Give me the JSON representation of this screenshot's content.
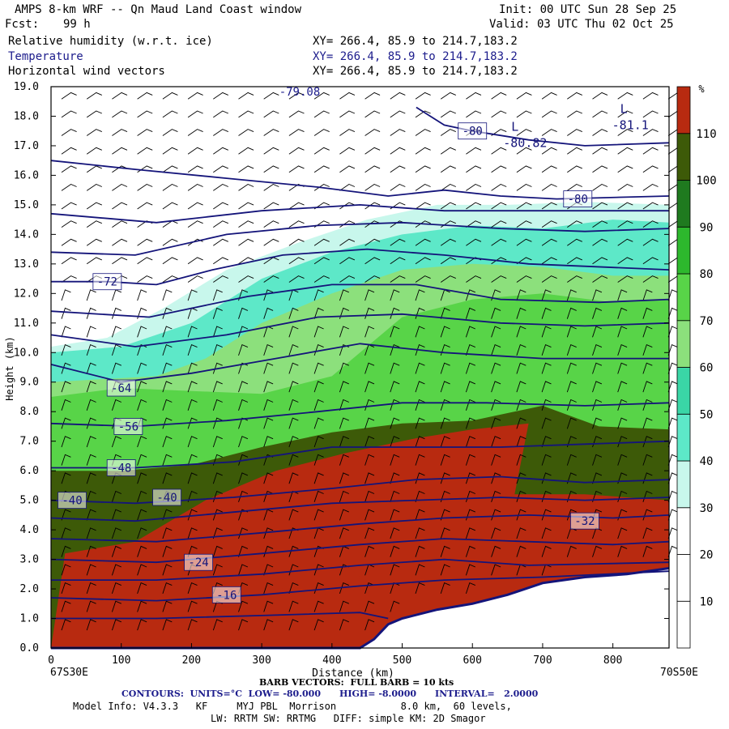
{
  "header": {
    "title": "AMPS 8-km WRF -- Qn Maud Land Coast window",
    "init": "Init: 00 UTC Sun 28 Sep 25",
    "fcst_label": "Fcst:",
    "fcst_value": "99 h",
    "valid": "Valid: 03 UTC Thu 02 Oct 25",
    "fields": [
      {
        "name": "Relative humidity (w.r.t. ice)",
        "xy": "XY= 266.4, 85.9 to 214.7,183.2"
      },
      {
        "name": "Temperature",
        "xy": "XY= 266.4, 85.9 to 214.7,183.2"
      },
      {
        "name": "Horizontal wind vectors",
        "xy": "XY= 266.4, 85.9 to 214.7,183.2"
      }
    ]
  },
  "chart_data": {
    "type": "heatmap",
    "xlabel": "Distance (km)",
    "ylabel": "Height (km)",
    "xlim": [
      0,
      880
    ],
    "ylim": [
      0,
      19
    ],
    "x_ticks": [
      0,
      100,
      200,
      300,
      400,
      500,
      600,
      700,
      800
    ],
    "y_ticks": [
      "0.0",
      "1.0",
      "2.0",
      "3.0",
      "4.0",
      "5.0",
      "6.0",
      "7.0",
      "8.0",
      "9.0",
      "10.0",
      "11.0",
      "12.0",
      "13.0",
      "14.0",
      "15.0",
      "16.0",
      "17.0",
      "18.0",
      "19.0"
    ],
    "x_start_label": "67S30E",
    "x_end_label": "70S50E",
    "colorbar": {
      "unit": "%",
      "ticks": [
        10,
        20,
        30,
        40,
        50,
        60,
        70,
        80,
        90,
        100,
        110
      ],
      "colors": [
        "#ffffff",
        "#ffffff",
        "#ffffff",
        "#c8f7ec",
        "#5de8c8",
        "#3ad6a6",
        "#8ce07c",
        "#58d448",
        "#2db82d",
        "#1f7a1f",
        "#3d5a08",
        "#b82a10"
      ]
    },
    "humidity_regions": [
      {
        "level": 30,
        "points": [
          [
            0,
            10.2
          ],
          [
            80,
            10.5
          ],
          [
            160,
            11.5
          ],
          [
            250,
            12.8
          ],
          [
            350,
            13.7
          ],
          [
            450,
            14.5
          ],
          [
            550,
            15.0
          ],
          [
            650,
            15.0
          ],
          [
            760,
            15.1
          ],
          [
            880,
            15.0
          ],
          [
            880,
            0
          ],
          [
            0,
            0
          ]
        ]
      },
      {
        "level": 40,
        "points": [
          [
            0,
            10.0
          ],
          [
            100,
            10.2
          ],
          [
            200,
            11.0
          ],
          [
            300,
            12.5
          ],
          [
            400,
            13.4
          ],
          [
            500,
            14.0
          ],
          [
            600,
            14.3
          ],
          [
            700,
            14.2
          ],
          [
            800,
            14.5
          ],
          [
            880,
            14.4
          ],
          [
            880,
            0
          ],
          [
            0,
            0
          ]
        ]
      },
      {
        "level": 60,
        "points": [
          [
            0,
            9.0
          ],
          [
            150,
            9.2
          ],
          [
            220,
            9.8
          ],
          [
            300,
            11.0
          ],
          [
            400,
            12.0
          ],
          [
            500,
            12.8
          ],
          [
            600,
            13.0
          ],
          [
            700,
            12.9
          ],
          [
            800,
            12.6
          ],
          [
            880,
            12.6
          ],
          [
            880,
            0
          ],
          [
            0,
            0
          ]
        ]
      },
      {
        "level": 70,
        "points": [
          [
            0,
            8.5
          ],
          [
            100,
            8.8
          ],
          [
            200,
            8.7
          ],
          [
            300,
            8.6
          ],
          [
            400,
            9.2
          ],
          [
            500,
            11.2
          ],
          [
            600,
            11.8
          ],
          [
            700,
            12.0
          ],
          [
            800,
            11.7
          ],
          [
            880,
            11.8
          ],
          [
            880,
            0
          ],
          [
            0,
            0
          ]
        ]
      },
      {
        "level": 100,
        "points": [
          [
            0,
            6.0
          ],
          [
            100,
            6.0
          ],
          [
            200,
            6.2
          ],
          [
            300,
            6.8
          ],
          [
            400,
            7.3
          ],
          [
            500,
            7.6
          ],
          [
            600,
            7.7
          ],
          [
            700,
            8.2
          ],
          [
            780,
            7.5
          ],
          [
            880,
            7.4
          ],
          [
            880,
            0
          ],
          [
            0,
            0
          ]
        ]
      },
      {
        "level": 110,
        "points": [
          [
            20,
            3.2
          ],
          [
            120,
            3.6
          ],
          [
            220,
            5.0
          ],
          [
            320,
            6.0
          ],
          [
            420,
            6.6
          ],
          [
            520,
            7.1
          ],
          [
            600,
            7.4
          ],
          [
            680,
            7.6
          ],
          [
            660,
            5.2
          ],
          [
            760,
            5.2
          ],
          [
            880,
            5.0
          ],
          [
            880,
            0
          ],
          [
            0,
            0
          ]
        ]
      },
      {
        "level": 120,
        "points": [
          [
            50,
            2.2
          ],
          [
            80,
            2.2
          ],
          [
            100,
            2.2
          ],
          [
            100,
            1.8
          ],
          [
            80,
            1.6
          ],
          [
            50,
            1.5
          ]
        ]
      },
      {
        "level": 120,
        "points": [
          [
            310,
            3.0
          ],
          [
            360,
            3.2
          ],
          [
            410,
            3.0
          ],
          [
            440,
            2.4
          ],
          [
            430,
            1.9
          ],
          [
            380,
            1.8
          ],
          [
            330,
            2.0
          ],
          [
            305,
            2.5
          ]
        ]
      },
      {
        "level": 120,
        "points": [
          [
            440,
            3.3
          ],
          [
            455,
            4.6
          ],
          [
            465,
            5.0
          ],
          [
            470,
            4.6
          ],
          [
            460,
            3.8
          ],
          [
            450,
            3.1
          ]
        ]
      }
    ],
    "terrain": [
      [
        0,
        0
      ],
      [
        440,
        0
      ],
      [
        460,
        0.3
      ],
      [
        480,
        0.8
      ],
      [
        500,
        1.0
      ],
      [
        550,
        1.3
      ],
      [
        600,
        1.5
      ],
      [
        650,
        1.8
      ],
      [
        700,
        2.2
      ],
      [
        760,
        2.4
      ],
      [
        820,
        2.5
      ],
      [
        880,
        2.7
      ]
    ],
    "isotherms": [
      {
        "label": "-80",
        "label_at": [
          600,
          17.5
        ],
        "points": [
          [
            0,
            16.5
          ],
          [
            120,
            16.2
          ],
          [
            250,
            15.9
          ],
          [
            380,
            15.6
          ],
          [
            480,
            15.3
          ],
          [
            560,
            15.5
          ],
          [
            640,
            15.3
          ],
          [
            720,
            15.2
          ],
          [
            880,
            15.3
          ]
        ]
      },
      {
        "label": "-80",
        "label_at": [
          750,
          15.2
        ],
        "points": [
          [
            520,
            18.3
          ],
          [
            560,
            17.7
          ],
          [
            600,
            17.5
          ],
          [
            680,
            17.2
          ],
          [
            760,
            17.0
          ],
          [
            880,
            17.1
          ]
        ]
      },
      {
        "label": "-72",
        "label_at": [
          80,
          12.4
        ],
        "points": [
          [
            0,
            12.4
          ],
          [
            80,
            12.4
          ],
          [
            150,
            12.3
          ],
          [
            230,
            12.8
          ],
          [
            330,
            13.3
          ],
          [
            450,
            13.5
          ],
          [
            560,
            13.3
          ],
          [
            680,
            13.0
          ],
          [
            880,
            12.8
          ]
        ]
      },
      {
        "label": "",
        "label_at": null,
        "points": [
          [
            0,
            13.4
          ],
          [
            120,
            13.3
          ],
          [
            250,
            14.0
          ],
          [
            380,
            14.3
          ],
          [
            500,
            14.4
          ],
          [
            640,
            14.2
          ],
          [
            760,
            14.1
          ],
          [
            880,
            14.2
          ]
        ]
      },
      {
        "label": "",
        "label_at": null,
        "points": [
          [
            0,
            14.7
          ],
          [
            150,
            14.4
          ],
          [
            300,
            14.8
          ],
          [
            440,
            15.0
          ],
          [
            560,
            14.8
          ],
          [
            700,
            14.8
          ],
          [
            880,
            14.8
          ]
        ]
      },
      {
        "label": "-64",
        "label_at": [
          100,
          8.8
        ],
        "points": [
          [
            0,
            9.6
          ],
          [
            100,
            9.0
          ],
          [
            200,
            9.3
          ],
          [
            320,
            9.8
          ],
          [
            440,
            10.3
          ],
          [
            560,
            10.0
          ],
          [
            700,
            9.8
          ],
          [
            880,
            9.8
          ]
        ]
      },
      {
        "label": "",
        "label_at": null,
        "points": [
          [
            0,
            10.6
          ],
          [
            120,
            10.2
          ],
          [
            250,
            10.6
          ],
          [
            380,
            11.2
          ],
          [
            500,
            11.3
          ],
          [
            640,
            11.0
          ],
          [
            760,
            10.9
          ],
          [
            880,
            11.0
          ]
        ]
      },
      {
        "label": "",
        "label_at": null,
        "points": [
          [
            0,
            11.4
          ],
          [
            140,
            11.2
          ],
          [
            280,
            11.9
          ],
          [
            400,
            12.3
          ],
          [
            520,
            12.3
          ],
          [
            640,
            11.8
          ],
          [
            780,
            11.7
          ],
          [
            880,
            11.8
          ]
        ]
      },
      {
        "label": "-56",
        "label_at": [
          110,
          7.5
        ],
        "points": [
          [
            0,
            7.6
          ],
          [
            120,
            7.5
          ],
          [
            250,
            7.7
          ],
          [
            380,
            8.0
          ],
          [
            500,
            8.3
          ],
          [
            620,
            8.3
          ],
          [
            760,
            8.2
          ],
          [
            880,
            8.3
          ]
        ]
      },
      {
        "label": "-48",
        "label_at": [
          100,
          6.1
        ],
        "points": [
          [
            0,
            6.1
          ],
          [
            120,
            6.1
          ],
          [
            260,
            6.3
          ],
          [
            400,
            6.8
          ],
          [
            520,
            6.8
          ],
          [
            640,
            6.8
          ],
          [
            760,
            6.9
          ],
          [
            880,
            7.0
          ]
        ]
      },
      {
        "label": "-40",
        "label_at": [
          30,
          5.0
        ],
        "points": [
          [
            0,
            5.0
          ],
          [
            120,
            4.9
          ],
          [
            260,
            5.1
          ],
          [
            400,
            5.4
          ],
          [
            520,
            5.7
          ],
          [
            640,
            5.8
          ],
          [
            760,
            5.6
          ],
          [
            880,
            5.7
          ]
        ]
      },
      {
        "label": "-40",
        "label_at": [
          165,
          5.1
        ],
        "points": [
          [
            0,
            4.4
          ],
          [
            120,
            4.3
          ],
          [
            260,
            4.6
          ],
          [
            400,
            4.9
          ],
          [
            520,
            5.0
          ],
          [
            640,
            5.1
          ],
          [
            760,
            5.0
          ],
          [
            880,
            5.1
          ]
        ]
      },
      {
        "label": "-32",
        "label_at": [
          760,
          4.3
        ],
        "points": [
          [
            0,
            3.7
          ],
          [
            150,
            3.6
          ],
          [
            300,
            3.9
          ],
          [
            440,
            4.2
          ],
          [
            560,
            4.4
          ],
          [
            680,
            4.5
          ],
          [
            800,
            4.4
          ],
          [
            880,
            4.5
          ]
        ]
      },
      {
        "label": "-24",
        "label_at": [
          210,
          2.9
        ],
        "points": [
          [
            0,
            3.0
          ],
          [
            150,
            2.9
          ],
          [
            300,
            3.2
          ],
          [
            440,
            3.5
          ],
          [
            560,
            3.7
          ],
          [
            680,
            3.6
          ],
          [
            800,
            3.5
          ],
          [
            880,
            3.6
          ]
        ]
      },
      {
        "label": "-16",
        "label_at": [
          250,
          1.8
        ],
        "points": [
          [
            0,
            2.3
          ],
          [
            150,
            2.3
          ],
          [
            300,
            2.5
          ],
          [
            440,
            2.8
          ],
          [
            560,
            3.0
          ],
          [
            680,
            2.8
          ],
          [
            880,
            2.9
          ]
        ]
      },
      {
        "label": "",
        "label_at": null,
        "points": [
          [
            0,
            1.7
          ],
          [
            150,
            1.6
          ],
          [
            300,
            1.8
          ],
          [
            440,
            2.1
          ],
          [
            560,
            2.3
          ],
          [
            700,
            2.4
          ],
          [
            880,
            2.6
          ]
        ]
      },
      {
        "label": "",
        "label_at": null,
        "points": [
          [
            0,
            1.0
          ],
          [
            150,
            1.0
          ],
          [
            300,
            1.1
          ],
          [
            440,
            1.2
          ],
          [
            480,
            1.0
          ]
        ]
      }
    ],
    "lows": [
      {
        "label": "L",
        "value": "-80.82",
        "at": [
          690,
          17.4
        ]
      },
      {
        "label": "L",
        "value": "-81.1",
        "at": [
          845,
          18.0
        ]
      }
    ],
    "top_value": "-79.08"
  },
  "footer": {
    "barb": "BARB VECTORS:  FULL BARB = 10 kts",
    "contours": "CONTOURS:  UNITS=°C  LOW= -80.000      HIGH= -8.0000      INTERVAL=   2.0000",
    "model_info": "Model Info: V4.3.3   KF     MYJ PBL  Morrison           8.0 km,  60 levels,",
    "model_info2": "LW: RRTM SW: RRTMG   DIFF: simple KM: 2D Smagor"
  }
}
